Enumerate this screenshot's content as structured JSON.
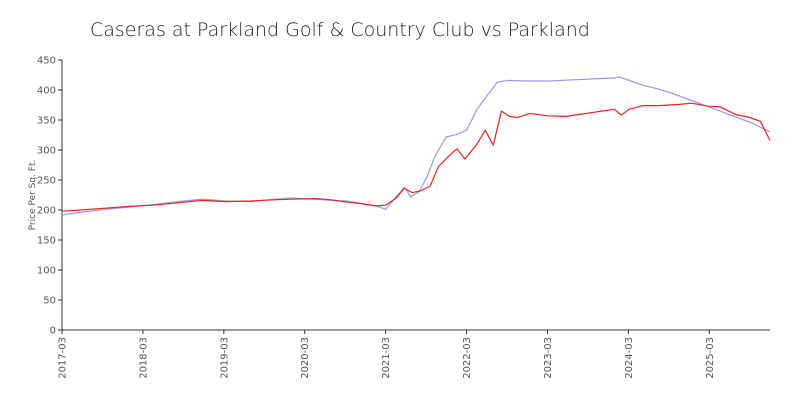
{
  "chart_data": {
    "type": "line",
    "title": "Caseras at Parkland Golf & Country Club vs Parkland",
    "xlabel": "",
    "ylabel": "Price Per Sq. Ft.",
    "ylim": [
      0,
      450
    ],
    "yticks": [
      0,
      50,
      100,
      150,
      200,
      250,
      300,
      350,
      400,
      450
    ],
    "xlim": [
      2017.17,
      2025.92
    ],
    "xticks": [
      {
        "label": "2017-03",
        "value": 2017.17
      },
      {
        "label": "2018-03",
        "value": 2018.17
      },
      {
        "label": "2019-03",
        "value": 2019.17
      },
      {
        "label": "2020-03",
        "value": 2020.17
      },
      {
        "label": "2021-03",
        "value": 2021.17
      },
      {
        "label": "2022-03",
        "value": 2022.17
      },
      {
        "label": "2023-03",
        "value": 2023.17
      },
      {
        "label": "2024-03",
        "value": 2024.17
      },
      {
        "label": "2025-03",
        "value": 2025.17
      }
    ],
    "grid": false,
    "legend": "none",
    "series": [
      {
        "name": "Caseras at Parkland Golf & Country Club",
        "color": "#9999ee",
        "points": [
          [
            2017.17,
            192
          ],
          [
            2017.4,
            196
          ],
          [
            2017.7,
            201
          ],
          [
            2018.0,
            205
          ],
          [
            2018.3,
            209
          ],
          [
            2018.6,
            214
          ],
          [
            2018.9,
            218
          ],
          [
            2019.2,
            215
          ],
          [
            2019.5,
            214
          ],
          [
            2019.8,
            218
          ],
          [
            2020.0,
            220
          ],
          [
            2020.3,
            218
          ],
          [
            2020.5,
            216
          ],
          [
            2020.7,
            215
          ],
          [
            2020.9,
            210
          ],
          [
            2021.1,
            205
          ],
          [
            2021.17,
            201
          ],
          [
            2021.3,
            222
          ],
          [
            2021.4,
            238
          ],
          [
            2021.48,
            222
          ],
          [
            2021.58,
            230
          ],
          [
            2021.68,
            255
          ],
          [
            2021.78,
            290
          ],
          [
            2021.92,
            322
          ],
          [
            2022.05,
            326
          ],
          [
            2022.17,
            333
          ],
          [
            2022.3,
            368
          ],
          [
            2022.42,
            390
          ],
          [
            2022.55,
            413
          ],
          [
            2022.68,
            416
          ],
          [
            2022.9,
            415
          ],
          [
            2023.17,
            415
          ],
          [
            2023.5,
            417
          ],
          [
            2023.8,
            419
          ],
          [
            2024.0,
            420
          ],
          [
            2024.05,
            422
          ],
          [
            2024.2,
            415
          ],
          [
            2024.35,
            408
          ],
          [
            2024.5,
            403
          ],
          [
            2024.7,
            395
          ],
          [
            2024.9,
            385
          ],
          [
            2025.1,
            375
          ],
          [
            2025.3,
            365
          ],
          [
            2025.5,
            355
          ],
          [
            2025.7,
            345
          ],
          [
            2025.92,
            330
          ]
        ]
      },
      {
        "name": "Parkland",
        "color": "#ee2222",
        "points": [
          [
            2017.17,
            198
          ],
          [
            2017.4,
            200
          ],
          [
            2017.7,
            203
          ],
          [
            2018.0,
            206
          ],
          [
            2018.3,
            208
          ],
          [
            2018.6,
            212
          ],
          [
            2018.9,
            216
          ],
          [
            2019.2,
            214
          ],
          [
            2019.5,
            215
          ],
          [
            2019.8,
            217
          ],
          [
            2020.0,
            218
          ],
          [
            2020.3,
            219
          ],
          [
            2020.5,
            217
          ],
          [
            2020.7,
            213
          ],
          [
            2020.9,
            210
          ],
          [
            2021.05,
            207
          ],
          [
            2021.17,
            208
          ],
          [
            2021.3,
            220
          ],
          [
            2021.4,
            236
          ],
          [
            2021.5,
            229
          ],
          [
            2021.6,
            232
          ],
          [
            2021.72,
            240
          ],
          [
            2021.82,
            272
          ],
          [
            2021.95,
            290
          ],
          [
            2022.05,
            302
          ],
          [
            2022.15,
            285
          ],
          [
            2022.3,
            310
          ],
          [
            2022.4,
            333
          ],
          [
            2022.5,
            308
          ],
          [
            2022.6,
            365
          ],
          [
            2022.7,
            356
          ],
          [
            2022.8,
            354
          ],
          [
            2022.95,
            361
          ],
          [
            2023.17,
            357
          ],
          [
            2023.4,
            356
          ],
          [
            2023.6,
            360
          ],
          [
            2023.8,
            364
          ],
          [
            2024.0,
            368
          ],
          [
            2024.08,
            358
          ],
          [
            2024.18,
            368
          ],
          [
            2024.35,
            374
          ],
          [
            2024.55,
            374
          ],
          [
            2024.8,
            376
          ],
          [
            2024.95,
            378
          ],
          [
            2025.15,
            373
          ],
          [
            2025.3,
            372
          ],
          [
            2025.5,
            359
          ],
          [
            2025.65,
            355
          ],
          [
            2025.8,
            348
          ],
          [
            2025.92,
            316
          ]
        ]
      }
    ]
  }
}
